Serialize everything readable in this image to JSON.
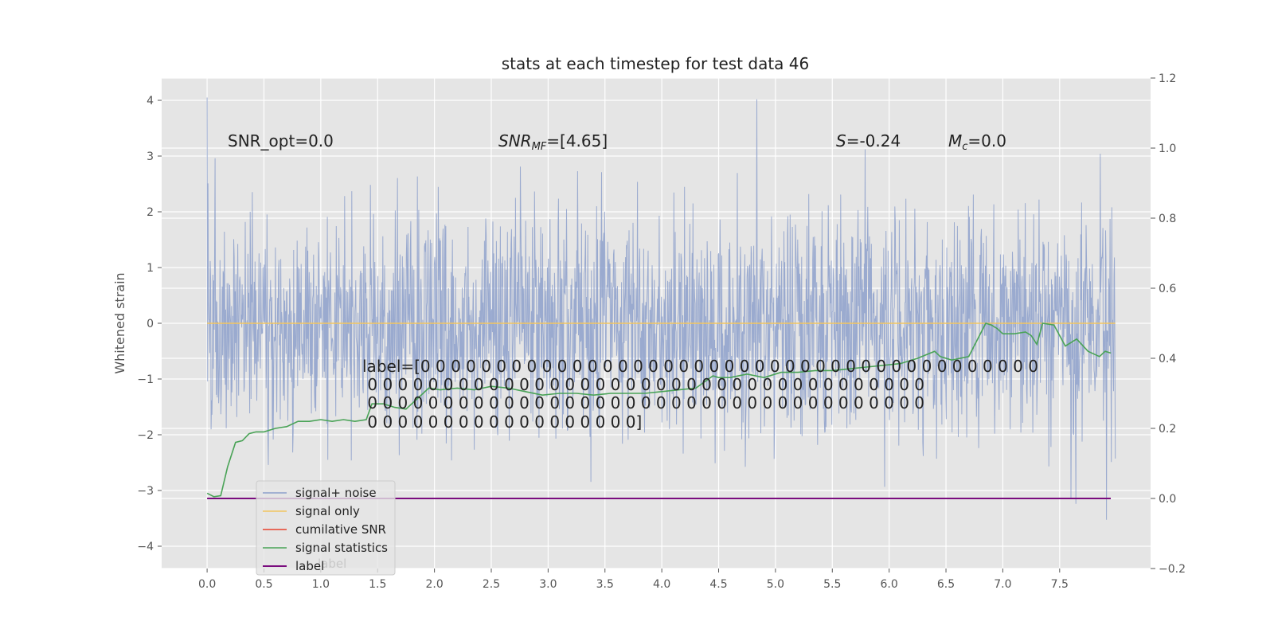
{
  "chart_data": {
    "type": "line",
    "title": "stats at each timestep for test data 46",
    "ylabel": "Whitened strain",
    "ylabel_right": "",
    "xlabel": "",
    "xlim": [
      -0.4,
      8.3
    ],
    "ylim_left": [
      -4.4,
      4.4
    ],
    "ylim_right": [
      -0.2,
      1.2
    ],
    "x_ticks": [
      "0.0",
      "0.5",
      "1.0",
      "1.5",
      "2.0",
      "2.5",
      "3.0",
      "3.5",
      "4.0",
      "4.5",
      "5.0",
      "5.5",
      "6.0",
      "6.5",
      "7.0",
      "7.5"
    ],
    "x_tick_values": [
      0,
      0.5,
      1,
      1.5,
      2,
      2.5,
      3,
      3.5,
      4,
      4.5,
      5,
      5.5,
      6,
      6.5,
      7,
      7.5
    ],
    "y_ticks_left": [
      "−4",
      "−3",
      "−2",
      "−1",
      "0",
      "1",
      "2",
      "3",
      "4"
    ],
    "y_tick_values_left": [
      -4,
      -3,
      -2,
      -1,
      0,
      1,
      2,
      3,
      4
    ],
    "y_ticks_right": [
      "−0.2",
      "0.0",
      "0.2",
      "0.4",
      "0.6",
      "0.8",
      "1.0",
      "1.2"
    ],
    "y_tick_values_right": [
      -0.2,
      0,
      0.2,
      0.4,
      0.6,
      0.8,
      1.0,
      1.2
    ],
    "grid": true,
    "legend_position": "bottom-left",
    "series": [
      {
        "name": "signal+ noise",
        "axis": "left",
        "color": "#8da0cb",
        "x_range": [
          0,
          7.99
        ],
        "samples": 2048,
        "mean": 0.0,
        "std": 1.0,
        "max": 4.05,
        "min": -3.9,
        "representation": "dense noise trace"
      },
      {
        "name": "signal only",
        "axis": "left",
        "color": "#f1c560",
        "x": [
          0,
          7.99
        ],
        "y": [
          0,
          0
        ]
      },
      {
        "name": "cumilative SNR",
        "axis": "right",
        "color": "#e8412c",
        "x": [],
        "y": []
      },
      {
        "name": "signal statistics",
        "axis": "right",
        "color": "#4aa357",
        "x": [
          0.0,
          0.06,
          0.12,
          0.18,
          0.25,
          0.31,
          0.37,
          0.43,
          0.5,
          0.6,
          0.7,
          0.8,
          0.9,
          1.0,
          1.1,
          1.2,
          1.3,
          1.4,
          1.45,
          1.55,
          1.65,
          1.75,
          1.85,
          1.95,
          2.05,
          2.2,
          2.35,
          2.5,
          2.65,
          2.8,
          2.95,
          3.1,
          3.25,
          3.4,
          3.55,
          3.7,
          3.85,
          4.0,
          4.15,
          4.3,
          4.45,
          4.5,
          4.6,
          4.75,
          4.9,
          5.05,
          5.2,
          5.35,
          5.5,
          5.65,
          5.8,
          5.95,
          6.1,
          6.25,
          6.4,
          6.45,
          6.55,
          6.7,
          6.85,
          6.9,
          6.95,
          7.0,
          7.1,
          7.2,
          7.25,
          7.3,
          7.35,
          7.45,
          7.55,
          7.65,
          7.75,
          7.85,
          7.9,
          7.95
        ],
        "y": [
          0.015,
          0.005,
          0.008,
          0.09,
          0.16,
          0.165,
          0.185,
          0.19,
          0.19,
          0.2,
          0.205,
          0.22,
          0.22,
          0.225,
          0.22,
          0.225,
          0.22,
          0.225,
          0.27,
          0.27,
          0.26,
          0.255,
          0.285,
          0.315,
          0.31,
          0.315,
          0.31,
          0.32,
          0.315,
          0.305,
          0.295,
          0.3,
          0.3,
          0.295,
          0.3,
          0.3,
          0.3,
          0.305,
          0.31,
          0.315,
          0.35,
          0.345,
          0.345,
          0.355,
          0.345,
          0.36,
          0.36,
          0.365,
          0.365,
          0.37,
          0.375,
          0.38,
          0.385,
          0.4,
          0.42,
          0.405,
          0.395,
          0.405,
          0.5,
          0.495,
          0.485,
          0.47,
          0.47,
          0.475,
          0.465,
          0.44,
          0.5,
          0.495,
          0.435,
          0.455,
          0.42,
          0.405,
          0.42,
          0.415
        ]
      },
      {
        "name": "label",
        "axis": "right",
        "color": "#7a0c7e",
        "x": [
          0,
          7.95
        ],
        "y": [
          0,
          0
        ]
      }
    ],
    "annotations": {
      "snr_opt": "SNR_opt=0.0",
      "snr_mf_prefix": "SNR",
      "snr_mf_sub": "MF",
      "snr_mf_value": "=[4.65]",
      "s_symbol": "S",
      "s_value": "=-0.24",
      "mc_symbol": "M",
      "mc_sub": "c",
      "mc_value": "=0.0",
      "label_lines": [
        "label=[0 0 0 0 0 0 0 0 0 0 0 0 0 0 0 0 0 0 0 0 0 0 0 0 0 0 0 0 0 0 0 0 0 0 0 0 0 0 0 0 0",
        " 0 0 0 0 0 0 0 0 0 0 0 0 0 0 0 0 0 0 0 0 0 0 0 0 0 0 0 0 0 0 0 0 0 0 0 0 0",
        " 0 0 0 0 0 0 0 0 0 0 0 0 0 0 0 0 0 0 0 0 0 0 0 0 0 0 0 0 0 0 0 0 0 0 0 0 0",
        " 0 0 0 0 0 0 0 0 0 0 0 0 0 0 0 0 0 0]"
      ]
    },
    "legend_ghost_text": "label"
  }
}
